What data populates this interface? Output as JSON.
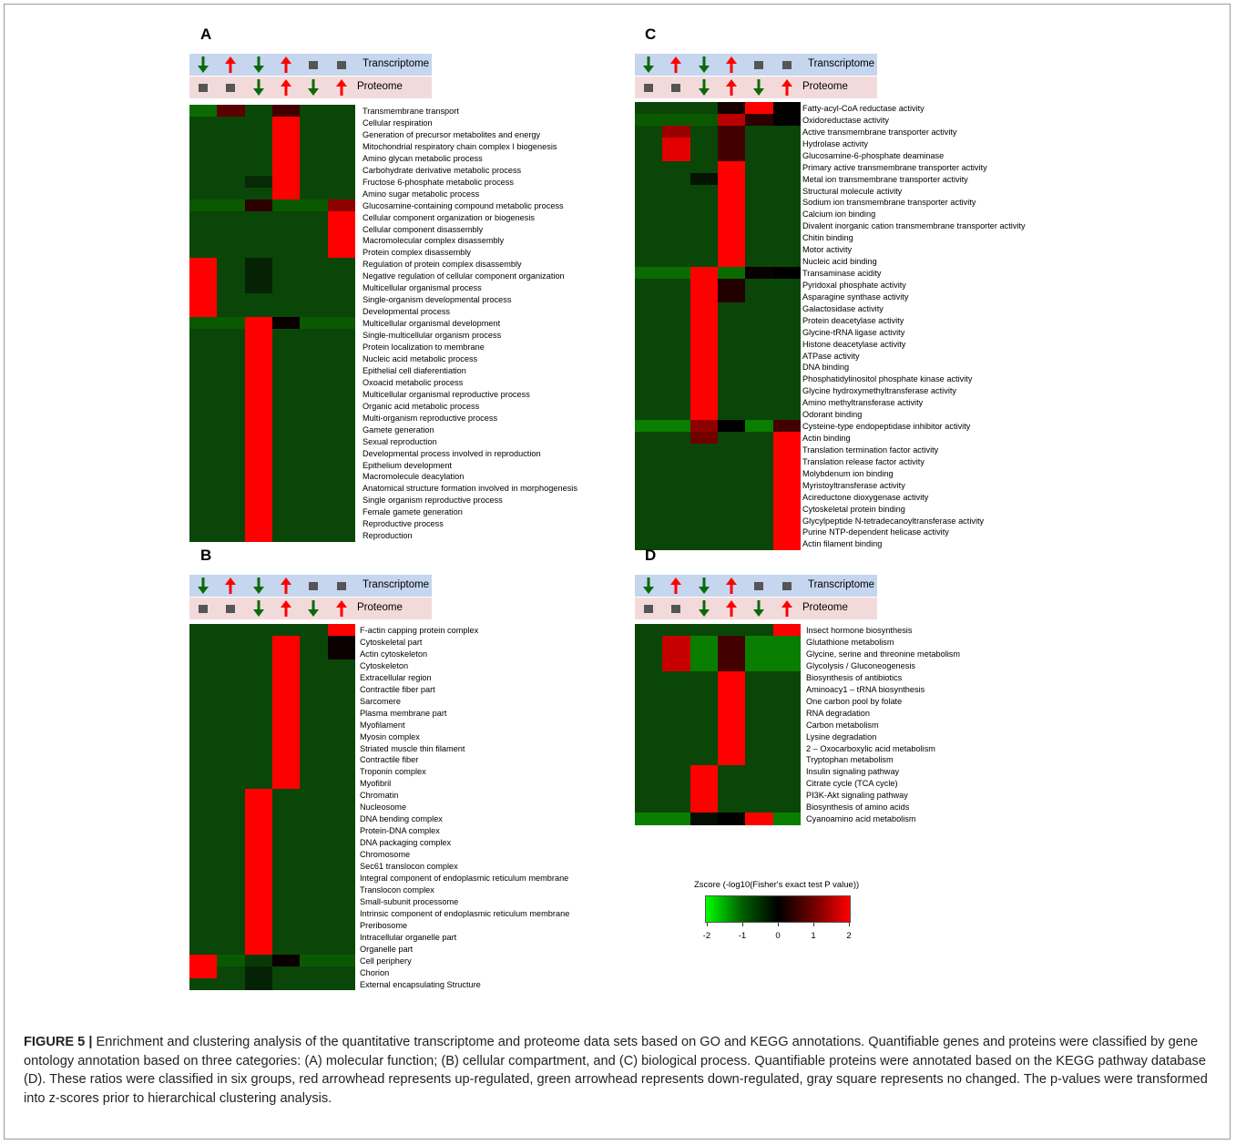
{
  "caption": {
    "label": "FIGURE 5 |",
    "text": "Enrichment and clustering analysis of the quantitative transcriptome and proteome data sets based on GO and KEGG annotations. Quantifiable genes and proteins were classified by gene ontology annotation based on three categories: (A) molecular function; (B) cellular compartment, and (C) biological process. Quantifiable proteins were annotated based on the KEGG pathway database (D). These ratios were classified in six groups, red arrowhead represents up-regulated, green arrowhead represents down-regulated, gray square represents no changed. The p-values were transformed into z-scores prior to hierarchical clustering analysis."
  },
  "header": {
    "transcriptome_label": "Transcriptome",
    "proteome_label": "Proteome",
    "transcriptome_symbols": [
      "down",
      "up",
      "down",
      "up",
      "none",
      "none"
    ],
    "proteome_symbols": [
      "none",
      "none",
      "down",
      "up",
      "down",
      "up"
    ]
  },
  "colors": {
    "up": "#ff0000",
    "down": "#0a6a0a",
    "none": "#555555",
    "transcriptome_bg": "#c5d6ee",
    "proteome_bg": "#f3dada"
  },
  "legend": {
    "title": "Zscore (-log10(Fisher's exact test P value))",
    "ticks": [
      "-2",
      "-1",
      "0",
      "1",
      "2"
    ],
    "range": [
      -2,
      2
    ]
  },
  "chart_data": [
    {
      "type": "heatmap",
      "panel": "A",
      "rows": [
        "Transmembrane transport",
        "Cellular respiration",
        "Generation of precursor metabolites and energy",
        "Mitochondrial respiratory chain complex I biogenesis",
        "Amino glycan metabolic process",
        "Carbohydrate derivative metabolic process",
        "Fructose 6-phosphate metabolic process",
        "Amino sugar metabolic process",
        "Glucosamine-containing compound metabolic process",
        "Cellular component organization or biogenesis",
        "Cellular component disassembly",
        "Macromolecular complex disassembly",
        "Protein complex disassembly",
        "Regulation of protein complex disassembly",
        "Negative regulation of cellular component organization",
        "Multicellular organismal process",
        "Single-organism developmental process",
        "Developmental process",
        "Multicellular organismal development",
        "Single-multicellular organism process",
        "Protein localization to membrane",
        "Nucleic acid metabolic process",
        "Epithelial cell diaferentiation",
        "Oxoacid metabolic process",
        "Multicellular organismal reproductive process",
        "Organic acid metabolic process",
        "Multi-organism reproductive process",
        "Gamete generation",
        "Sexual reproduction",
        "Developmental process involved in reproduction",
        "Epithelium development",
        "Macromolecule deacylation",
        "Anatomical structure formation involved in morphogenesis",
        "Single organism reproductive process",
        "Female gamete generation",
        "Reproductive process",
        "Reproduction"
      ],
      "values": [
        [
          -1.2,
          0.8,
          -1.0,
          0.6,
          -1.0,
          -1.0
        ],
        [
          -1,
          -1,
          -1,
          2,
          -1,
          -1
        ],
        [
          -1,
          -1,
          -1,
          2,
          -1,
          -1
        ],
        [
          -1,
          -1,
          -1,
          2,
          -1,
          -1
        ],
        [
          -1,
          -1,
          -1,
          2,
          -1,
          -1
        ],
        [
          -1,
          -1,
          -1,
          2,
          -1,
          -1
        ],
        [
          -1,
          -1,
          -0.6,
          2,
          -1,
          -1
        ],
        [
          -1,
          -1,
          -1,
          2,
          -1,
          -1
        ],
        [
          -1.1,
          -1.1,
          0.4,
          -1.1,
          -1.1,
          1.2
        ],
        [
          -1,
          -1,
          -1,
          -1,
          -1,
          2
        ],
        [
          -1,
          -1,
          -1,
          -1,
          -1,
          2
        ],
        [
          -1,
          -1,
          -1,
          -1,
          -1,
          2
        ],
        [
          -1,
          -1,
          -1,
          -1,
          -1,
          2
        ],
        [
          2,
          -1,
          -0.5,
          -1,
          -1,
          -1
        ],
        [
          2,
          -1,
          -0.5,
          -1,
          -1,
          -1
        ],
        [
          2,
          -1,
          -0.5,
          -1,
          -1,
          -1
        ],
        [
          2,
          -1,
          -1,
          -1,
          -1,
          -1
        ],
        [
          2,
          -1,
          -1,
          -1,
          -1,
          -1
        ],
        [
          -1.1,
          -1.1,
          2,
          0.1,
          -1.1,
          -1.1
        ],
        [
          -1,
          -1,
          2,
          -1,
          -1,
          -1
        ],
        [
          -1,
          -1,
          2,
          -1,
          -1,
          -1
        ],
        [
          -1,
          -1,
          2,
          -1,
          -1,
          -1
        ],
        [
          -1,
          -1,
          2,
          -1,
          -1,
          -1
        ],
        [
          -1,
          -1,
          2,
          -1,
          -1,
          -1
        ],
        [
          -1,
          -1,
          2,
          -1,
          -1,
          -1
        ],
        [
          -1,
          -1,
          2,
          -1,
          -1,
          -1
        ],
        [
          -1,
          -1,
          2,
          -1,
          -1,
          -1
        ],
        [
          -1,
          -1,
          2,
          -1,
          -1,
          -1
        ],
        [
          -1,
          -1,
          2,
          -1,
          -1,
          -1
        ],
        [
          -1,
          -1,
          2,
          -1,
          -1,
          -1
        ],
        [
          -1,
          -1,
          2,
          -1,
          -1,
          -1
        ],
        [
          -1,
          -1,
          2,
          -1,
          -1,
          -1
        ],
        [
          -1,
          -1,
          2,
          -1,
          -1,
          -1
        ],
        [
          -1,
          -1,
          2,
          -1,
          -1,
          -1
        ],
        [
          -1,
          -1,
          2,
          -1,
          -1,
          -1
        ],
        [
          -1,
          -1,
          2,
          -1,
          -1,
          -1
        ],
        [
          -1,
          -1,
          2,
          -1,
          -1,
          -1
        ]
      ]
    },
    {
      "type": "heatmap",
      "panel": "B",
      "rows": [
        "F-actin capping protein complex",
        "Cytoskeletal part",
        "Actin cytoskeleton",
        "Cytoskeleton",
        "Extracellular region",
        "Contractile fiber part",
        "Sarcomere",
        "Plasma membrane part",
        "Myofilament",
        "Myosin complex",
        "Striated muscle thin filament",
        "Contractile fiber",
        "Troponin complex",
        "Myofibril",
        "Chromatin",
        "Nucleosome",
        "DNA bending complex",
        "Protein-DNA complex",
        "DNA packaging complex",
        "Chromosome",
        "Sec61 translocon complex",
        "Integral component of endoplasmic reticulum membrane",
        "Translocon complex",
        "Small-subunit processome",
        "Intrinsic component of endoplasmic reticulum membrane",
        "Preribosome",
        "Intracellular organelle part",
        "Organelle part",
        "Cell periphery",
        "Chorion",
        "External encapsulating Structure"
      ],
      "values": [
        [
          -1,
          -1,
          -1,
          -1,
          -1,
          2
        ],
        [
          -1,
          -1,
          -1,
          2,
          -1,
          0.1
        ],
        [
          -1,
          -1,
          -1,
          2,
          -1,
          0.1
        ],
        [
          -1,
          -1,
          -1,
          2,
          -1,
          -1
        ],
        [
          -1,
          -1,
          -1,
          2,
          -1,
          -1
        ],
        [
          -1,
          -1,
          -1,
          2,
          -1,
          -1
        ],
        [
          -1,
          -1,
          -1,
          2,
          -1,
          -1
        ],
        [
          -1,
          -1,
          -1,
          2,
          -1,
          -1
        ],
        [
          -1,
          -1,
          -1,
          2,
          -1,
          -1
        ],
        [
          -1,
          -1,
          -1,
          2,
          -1,
          -1
        ],
        [
          -1,
          -1,
          -1,
          2,
          -1,
          -1
        ],
        [
          -1,
          -1,
          -1,
          2,
          -1,
          -1
        ],
        [
          -1,
          -1,
          -1,
          2,
          -1,
          -1
        ],
        [
          -1,
          -1,
          -1,
          2,
          -1,
          -1
        ],
        [
          -1,
          -1,
          2,
          -1,
          -1,
          -1
        ],
        [
          -1,
          -1,
          2,
          -1,
          -1,
          -1
        ],
        [
          -1,
          -1,
          2,
          -1,
          -1,
          -1
        ],
        [
          -1,
          -1,
          2,
          -1,
          -1,
          -1
        ],
        [
          -1,
          -1,
          2,
          -1,
          -1,
          -1
        ],
        [
          -1,
          -1,
          2,
          -1,
          -1,
          -1
        ],
        [
          -1,
          -1,
          2,
          -1,
          -1,
          -1
        ],
        [
          -1,
          -1,
          2,
          -1,
          -1,
          -1
        ],
        [
          -1,
          -1,
          2,
          -1,
          -1,
          -1
        ],
        [
          -1,
          -1,
          2,
          -1,
          -1,
          -1
        ],
        [
          -1,
          -1,
          2,
          -1,
          -1,
          -1
        ],
        [
          -1,
          -1,
          2,
          -1,
          -1,
          -1
        ],
        [
          -1,
          -1,
          2,
          -1,
          -1,
          -1
        ],
        [
          -1,
          -1,
          2,
          -1,
          -1,
          -1
        ],
        [
          2,
          -1.1,
          -0.8,
          0.1,
          -1.1,
          -1.1
        ],
        [
          2,
          -1,
          -0.5,
          -1,
          -1,
          -1
        ],
        [
          -1,
          -1,
          -0.5,
          -1,
          -1,
          -1
        ]
      ]
    },
    {
      "type": "heatmap",
      "panel": "C",
      "rows": [
        "Fatty-acyl-CoA reductase activity",
        "Oxidoreductase activity",
        "Active transmembrane transporter activity",
        "Hydrolase activity",
        "Glucosamine-6-phosphate deaminase",
        "Primary active transmembrane transporter activity",
        "Metal ion transmembrane transporter activity",
        "Structural molecule activity",
        "Sodium ion transmembrane transporter activity",
        "Calcium ion binding",
        "Divalent inorganic cation transmembrane transporter activity",
        "Chitin binding",
        "Motor activity",
        "Nucleic acid binding",
        "Transaminase acidity",
        "Pyridoxal phosphate activity",
        "Asparagine synthase activity",
        "Galactosidase activity",
        "Protein deacetylase activity",
        "Glycine-tRNA ligase activity",
        "Histone deacetylase activity",
        "ATPase activity",
        "DNA binding",
        "Phosphatidylinositol phosphate kinase activity",
        "Glycine hydroxymethyltransferase activity",
        "Amino methyltransferase activity",
        "Odorant binding",
        "Cysteine-type endopeptidase inhibitor activity",
        "Actin binding",
        "Translation termination factor activity",
        "Translation release factor activity",
        "Molybdenum ion binding",
        "Myristoyltransferase activity",
        "Acireductone dioxygenase activity",
        "Cytoskeletal protein binding",
        "Glycylpeptide N-tetradecanoyltransferase activity",
        "Purine NTP-dependent helicase activity",
        "Actin filament binding"
      ],
      "values": [
        [
          -1,
          -1,
          -1,
          0.2,
          2,
          0.0
        ],
        [
          -1.1,
          -1.1,
          -1.1,
          1.5,
          0.4,
          0.0
        ],
        [
          -1,
          1.3,
          -1,
          0.6,
          -1,
          -1
        ],
        [
          -1,
          1.8,
          -1,
          0.6,
          -1,
          -1
        ],
        [
          -1,
          1.8,
          -1,
          0.6,
          -1,
          -1
        ],
        [
          -1,
          -1,
          -1,
          2,
          -1,
          -1
        ],
        [
          -1,
          -1,
          -0.3,
          2,
          -1,
          -1
        ],
        [
          -1,
          -1,
          -1,
          2,
          -1,
          -1
        ],
        [
          -1,
          -1,
          -1,
          2,
          -1,
          -1
        ],
        [
          -1,
          -1,
          -1,
          2,
          -1,
          -1
        ],
        [
          -1,
          -1,
          -1,
          2,
          -1,
          -1
        ],
        [
          -1,
          -1,
          -1,
          2,
          -1,
          -1
        ],
        [
          -1,
          -1,
          -1,
          2,
          -1,
          -1
        ],
        [
          -1,
          -1,
          -1,
          2,
          -1,
          -1
        ],
        [
          -1.2,
          -1.2,
          2,
          -1.2,
          0.1,
          0.0
        ],
        [
          -1,
          -1,
          2,
          0.3,
          -1,
          -1
        ],
        [
          -1,
          -1,
          2,
          0.3,
          -1,
          -1
        ],
        [
          -1,
          -1,
          2,
          -1,
          -1,
          -1
        ],
        [
          -1,
          -1,
          2,
          -1,
          -1,
          -1
        ],
        [
          -1,
          -1,
          2,
          -1,
          -1,
          -1
        ],
        [
          -1,
          -1,
          2,
          -1,
          -1,
          -1
        ],
        [
          -1,
          -1,
          2,
          -1,
          -1,
          -1
        ],
        [
          -1,
          -1,
          2,
          -1,
          -1,
          -1
        ],
        [
          -1,
          -1,
          2,
          -1,
          -1,
          -1
        ],
        [
          -1,
          -1,
          2,
          -1,
          -1,
          -1
        ],
        [
          -1,
          -1,
          2,
          -1,
          -1,
          -1
        ],
        [
          -1,
          -1,
          2,
          -1,
          -1,
          -1
        ],
        [
          -1.3,
          -1.3,
          1.2,
          0.0,
          -1.3,
          0.6
        ],
        [
          -1,
          -1,
          1.0,
          -1,
          -1,
          2
        ],
        [
          -1,
          -1,
          -1,
          -1,
          -1,
          2
        ],
        [
          -1,
          -1,
          -1,
          -1,
          -1,
          2
        ],
        [
          -1,
          -1,
          -1,
          -1,
          -1,
          2
        ],
        [
          -1,
          -1,
          -1,
          -1,
          -1,
          2
        ],
        [
          -1,
          -1,
          -1,
          -1,
          -1,
          2
        ],
        [
          -1,
          -1,
          -1,
          -1,
          -1,
          2
        ],
        [
          -1,
          -1,
          -1,
          -1,
          -1,
          2
        ],
        [
          -1,
          -1,
          -1,
          -1,
          -1,
          2
        ],
        [
          -1,
          -1,
          -1,
          -1,
          -1,
          2
        ]
      ]
    },
    {
      "type": "heatmap",
      "panel": "D",
      "rows": [
        "Insect hormone biosynthesis",
        "Glutathione metabolism",
        "Glycine, serine and threonine metabolism",
        "Glycolysis / Gluconeogenesis",
        "Biosynthesis of antibiotics",
        "Aminoacy1 – tRNA biosynthesis",
        "One carbon pool by folate",
        "RNA degradation",
        "Carbon metabolism",
        "Lysine degradation",
        "2 – Oxocarboxylic acid metabolism",
        "Tryptophan metabolism",
        "Insulin signaling pathway",
        "Citrate cycle (TCA cycle)",
        "PI3K-Akt signaling pathway",
        "Biosynthesis of amino acids",
        "Cyanoamino acid metabolism"
      ],
      "values": [
        [
          -1,
          -1,
          -1,
          -1,
          -1,
          2
        ],
        [
          -1,
          1.6,
          -1.3,
          0.6,
          -1.3,
          -1.3
        ],
        [
          -1,
          1.6,
          -1.3,
          0.6,
          -1.3,
          -1.3
        ],
        [
          -1,
          1.6,
          -1.3,
          0.6,
          -1.3,
          -1.3
        ],
        [
          -1,
          -1,
          -1,
          2,
          -1,
          -1
        ],
        [
          -1,
          -1,
          -1,
          2,
          -1,
          -1
        ],
        [
          -1,
          -1,
          -1,
          2,
          -1,
          -1
        ],
        [
          -1,
          -1,
          -1,
          2,
          -1,
          -1
        ],
        [
          -1,
          -1,
          -1,
          2,
          -1,
          -1
        ],
        [
          -1,
          -1,
          -1,
          2,
          -1,
          -1
        ],
        [
          -1,
          -1,
          -1,
          2,
          -1,
          -1
        ],
        [
          -1,
          -1,
          -1,
          2,
          -1,
          -1
        ],
        [
          -1,
          -1,
          2,
          -1,
          -1,
          -1
        ],
        [
          -1,
          -1,
          2,
          -1,
          -1,
          -1
        ],
        [
          -1,
          -1,
          2,
          -1,
          -1,
          -1
        ],
        [
          -1,
          -1,
          2,
          -1,
          -1,
          -1
        ],
        [
          -1.3,
          -1.3,
          -0.2,
          0.0,
          2,
          -1.3
        ]
      ]
    }
  ]
}
